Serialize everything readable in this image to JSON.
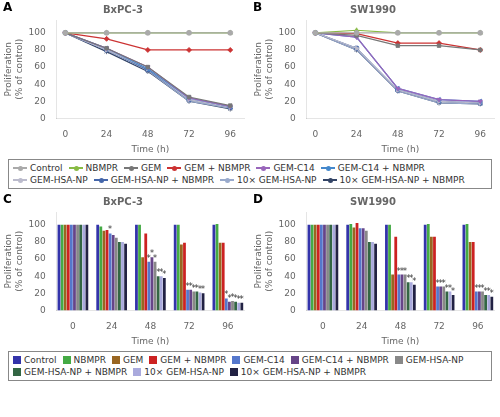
{
  "chart_data": [
    {
      "type": "line",
      "title": "BxPC-3",
      "xlabel": "Time (h)",
      "ylabel": "Proliferation\n(% of control)",
      "x": [
        0,
        24,
        48,
        72,
        96
      ],
      "xlim": [
        -5,
        104
      ],
      "xticks": [
        0,
        24,
        48,
        72,
        96
      ],
      "ylim": [
        0,
        115
      ],
      "yticks": [
        0,
        20,
        40,
        60,
        80,
        100
      ],
      "grid": false,
      "legend": "bottom",
      "annotations": [
        {
          "text": "A"
        }
      ],
      "series": [
        {
          "name": "Control",
          "color": "#aaaaaa",
          "marker": "circle",
          "values": [
            100,
            100,
            100,
            100,
            100
          ]
        },
        {
          "name": "NBMPR",
          "color": "#88bb44",
          "marker": "triangle_up",
          "values": [
            100,
            100,
            100,
            100,
            100
          ]
        },
        {
          "name": "GEM",
          "color": "#777777",
          "marker": "square",
          "values": [
            100,
            82,
            60,
            25,
            15
          ]
        },
        {
          "name": "GEM + NBMPR",
          "color": "#cc3333",
          "marker": "diamond",
          "values": [
            100,
            93,
            80,
            80,
            80
          ]
        },
        {
          "name": "GEM-C14",
          "color": "#9966bb",
          "marker": "triangle_down",
          "values": [
            100,
            82,
            60,
            24,
            14
          ]
        },
        {
          "name": "GEM-C14 + NBMPR",
          "color": "#4488cc",
          "marker": "triangle_left",
          "values": [
            100,
            82,
            58,
            24,
            14
          ]
        },
        {
          "name": "GEM-HSA-NP",
          "color": "#bbbbcc",
          "marker": "triangle_right",
          "values": [
            100,
            80,
            58,
            22,
            13
          ]
        },
        {
          "name": "GEM-HSA-NP + NBMPR",
          "color": "#4466aa",
          "marker": "pentagon",
          "values": [
            100,
            80,
            57,
            22,
            13
          ]
        },
        {
          "name": "10× GEM-HSA-NP",
          "color": "#99aacc",
          "marker": "hexagon",
          "values": [
            100,
            80,
            56,
            20,
            12
          ]
        },
        {
          "name": "10× GEM-HSA-NP + NBMPR",
          "color": "#334466",
          "marker": "star",
          "values": [
            100,
            78,
            55,
            20,
            11
          ]
        }
      ]
    },
    {
      "type": "line",
      "title": "SW1990",
      "xlabel": "Time (h)",
      "ylabel": "Proliferation\n(% of control)",
      "x": [
        0,
        24,
        48,
        72,
        96
      ],
      "xlim": [
        -5,
        104
      ],
      "xticks": [
        0,
        24,
        48,
        72,
        96
      ],
      "ylim": [
        0,
        115
      ],
      "yticks": [
        0,
        20,
        40,
        60,
        80,
        100
      ],
      "grid": false,
      "annotations": [
        {
          "text": "B"
        }
      ],
      "series": [
        {
          "name": "Control",
          "color": "#aaaaaa",
          "marker": "circle",
          "values": [
            100,
            100,
            100,
            100,
            100
          ]
        },
        {
          "name": "NBMPR",
          "color": "#88bb44",
          "marker": "triangle_up",
          "values": [
            100,
            103,
            100,
            100,
            100
          ]
        },
        {
          "name": "GEM",
          "color": "#777777",
          "marker": "square",
          "values": [
            100,
            97,
            85,
            85,
            80
          ]
        },
        {
          "name": "GEM + NBMPR",
          "color": "#cc3333",
          "marker": "diamond",
          "values": [
            100,
            99,
            88,
            88,
            80
          ]
        },
        {
          "name": "GEM-C14",
          "color": "#9966bb",
          "marker": "triangle_down",
          "values": [
            100,
            95,
            35,
            22,
            20
          ]
        },
        {
          "name": "GEM-C14 + NBMPR",
          "color": "#4488cc",
          "marker": "triangle_left",
          "values": [
            100,
            95,
            35,
            22,
            20
          ]
        },
        {
          "name": "GEM-HSA-NP",
          "color": "#bbbbcc",
          "marker": "triangle_right",
          "values": [
            100,
            82,
            33,
            20,
            18
          ]
        },
        {
          "name": "GEM-HSA-NP + NBMPR",
          "color": "#4466aa",
          "marker": "pentagon",
          "values": [
            100,
            82,
            33,
            20,
            18
          ]
        },
        {
          "name": "10× GEM-HSA-NP",
          "color": "#99aacc",
          "marker": "hexagon",
          "values": [
            100,
            80,
            32,
            18,
            17
          ]
        },
        {
          "name": "10× GEM-HSA-NP + NBMPR",
          "color": "#334466",
          "marker": "star",
          "values": [
            100,
            80,
            32,
            18,
            17
          ]
        }
      ]
    },
    {
      "type": "bar",
      "title": "BxPC-3",
      "xlabel": "Time (h)",
      "ylabel": "Proliferation\n(% of control)",
      "x": [
        0,
        24,
        48,
        72,
        96
      ],
      "xlim": [
        -10,
        106
      ],
      "xticks": [
        0,
        24,
        48,
        72,
        96
      ],
      "ylim": [
        0,
        115
      ],
      "yticks": [
        0,
        20,
        40,
        60,
        80,
        100
      ],
      "grid": false,
      "legend": "bottom",
      "annotations": [
        {
          "text": "C"
        },
        {
          "text": "*",
          "series": "GEM-C14",
          "x": 24,
          "y": 90
        },
        {
          "text": "*",
          "series": "GEM-C14",
          "x": 48,
          "y": 57
        },
        {
          "text": "*",
          "series": "GEM-C14",
          "x": 72,
          "y": 24
        },
        {
          "text": "*",
          "series": "GEM-C14",
          "x": 96,
          "y": 14
        },
        {
          "text": "*",
          "series": "GEM-C14 + NBMPR",
          "x": 48,
          "y": 62
        },
        {
          "text": "*",
          "series": "GEM-C14 + NBMPR",
          "x": 72,
          "y": 24
        },
        {
          "text": "*",
          "series": "GEM-C14 + NBMPR",
          "x": 96,
          "y": 10
        },
        {
          "text": "*",
          "series": "GEM-HSA-NP",
          "x": 48,
          "y": 57
        },
        {
          "text": "*",
          "series": "GEM-HSA-NP",
          "x": 72,
          "y": 22
        },
        {
          "text": "*",
          "series": "GEM-HSA-NP",
          "x": 96,
          "y": 11
        },
        {
          "text": "*",
          "series": "GEM-HSA-NP + NBMPR",
          "x": 48,
          "y": 40
        },
        {
          "text": "*",
          "series": "GEM-HSA-NP + NBMPR",
          "x": 72,
          "y": 22
        },
        {
          "text": "*",
          "series": "GEM-HSA-NP + NBMPR",
          "x": 96,
          "y": 10
        },
        {
          "text": "*",
          "series": "10× GEM-HSA-NP",
          "x": 48,
          "y": 40
        },
        {
          "text": "*",
          "series": "10× GEM-HSA-NP",
          "x": 72,
          "y": 21
        },
        {
          "text": "*",
          "series": "10× GEM-HSA-NP",
          "x": 96,
          "y": 9
        },
        {
          "text": "*",
          "series": "10× GEM-HSA-NP + NBMPR",
          "x": 48,
          "y": 38
        },
        {
          "text": "*",
          "series": "10× GEM-HSA-NP + NBMPR",
          "x": 72,
          "y": 20
        },
        {
          "text": "*",
          "series": "10× GEM-HSA-NP + NBMPR",
          "x": 96,
          "y": 9
        }
      ],
      "series": [
        {
          "name": "Control",
          "color": "#3333aa",
          "values": [
            100,
            100,
            100,
            100,
            100
          ]
        },
        {
          "name": "NBMPR",
          "color": "#44aa44",
          "values": [
            100,
            98,
            100,
            100,
            101
          ]
        },
        {
          "name": "GEM",
          "color": "#996622",
          "values": [
            100,
            93,
            62,
            77,
            79
          ]
        },
        {
          "name": "GEM + NBMPR",
          "color": "#cc2222",
          "values": [
            100,
            94,
            90,
            79,
            79
          ]
        },
        {
          "name": "GEM-C14",
          "color": "#5577cc",
          "values": [
            100,
            90,
            57,
            24,
            14
          ]
        },
        {
          "name": "GEM-C14 + NBMPR",
          "color": "#664488",
          "values": [
            100,
            88,
            62,
            24,
            10
          ]
        },
        {
          "name": "GEM-HSA-NP",
          "color": "#888888",
          "values": [
            100,
            85,
            57,
            22,
            11
          ]
        },
        {
          "name": "GEM-HSA-NP + NBMPR",
          "color": "#336644",
          "values": [
            100,
            80,
            40,
            22,
            10
          ]
        },
        {
          "name": "10× GEM-HSA-NP",
          "color": "#aaaadd",
          "values": [
            100,
            80,
            40,
            21,
            9
          ]
        },
        {
          "name": "10× GEM-HSA-NP + NBMPR",
          "color": "#222244",
          "values": [
            100,
            78,
            38,
            20,
            9
          ]
        }
      ]
    },
    {
      "type": "bar",
      "title": "SW1990",
      "xlabel": "Time (h)",
      "ylabel": "Proliferation\n(% of control)",
      "x": [
        0,
        24,
        48,
        72,
        96
      ],
      "xlim": [
        -10,
        106
      ],
      "xticks": [
        0,
        24,
        48,
        72,
        96
      ],
      "ylim": [
        0,
        115
      ],
      "yticks": [
        0,
        20,
        40,
        60,
        80,
        100
      ],
      "grid": false,
      "annotations": [
        {
          "text": "D"
        },
        {
          "text": "*",
          "series": "GEM-C14",
          "x": 48,
          "y": 42
        },
        {
          "text": "*",
          "series": "GEM-C14",
          "x": 72,
          "y": 28
        },
        {
          "text": "*",
          "series": "GEM-C14",
          "x": 96,
          "y": 22
        },
        {
          "text": "*",
          "series": "GEM-C14 + NBMPR",
          "x": 48,
          "y": 42
        },
        {
          "text": "*",
          "series": "GEM-C14 + NBMPR",
          "x": 72,
          "y": 28
        },
        {
          "text": "*",
          "series": "GEM-C14 + NBMPR",
          "x": 96,
          "y": 22
        },
        {
          "text": "*",
          "series": "GEM-HSA-NP",
          "x": 48,
          "y": 42
        },
        {
          "text": "*",
          "series": "GEM-HSA-NP",
          "x": 72,
          "y": 28
        },
        {
          "text": "*",
          "series": "GEM-HSA-NP",
          "x": 96,
          "y": 22
        },
        {
          "text": "*",
          "series": "GEM-HSA-NP + NBMPR",
          "x": 48,
          "y": 33
        },
        {
          "text": "*",
          "series": "GEM-HSA-NP + NBMPR",
          "x": 72,
          "y": 22
        },
        {
          "text": "*",
          "series": "GEM-HSA-NP + NBMPR",
          "x": 96,
          "y": 18
        },
        {
          "text": "*",
          "series": "10× GEM-HSA-NP",
          "x": 48,
          "y": 33
        },
        {
          "text": "*",
          "series": "10× GEM-HSA-NP",
          "x": 72,
          "y": 22
        },
        {
          "text": "*",
          "series": "10× GEM-HSA-NP",
          "x": 96,
          "y": 18
        },
        {
          "text": "*",
          "series": "10× GEM-HSA-NP + NBMPR",
          "x": 48,
          "y": 30
        },
        {
          "text": "*",
          "series": "10× GEM-HSA-NP + NBMPR",
          "x": 72,
          "y": 18
        },
        {
          "text": "*",
          "series": "10× GEM-HSA-NP + NBMPR",
          "x": 96,
          "y": 16
        }
      ],
      "series": [
        {
          "name": "Control",
          "color": "#3333aa",
          "values": [
            100,
            100,
            100,
            100,
            100
          ]
        },
        {
          "name": "NBMPR",
          "color": "#44aa44",
          "values": [
            100,
            101,
            100,
            101,
            101
          ]
        },
        {
          "name": "GEM",
          "color": "#996622",
          "values": [
            100,
            97,
            42,
            86,
            80
          ]
        },
        {
          "name": "GEM + NBMPR",
          "color": "#cc2222",
          "values": [
            100,
            102,
            86,
            86,
            80
          ]
        },
        {
          "name": "GEM-C14",
          "color": "#5577cc",
          "values": [
            100,
            96,
            42,
            28,
            22
          ]
        },
        {
          "name": "GEM-C14 + NBMPR",
          "color": "#664488",
          "values": [
            100,
            96,
            42,
            28,
            22
          ]
        },
        {
          "name": "GEM-HSA-NP",
          "color": "#888888",
          "values": [
            100,
            93,
            42,
            28,
            22
          ]
        },
        {
          "name": "GEM-HSA-NP + NBMPR",
          "color": "#336644",
          "values": [
            100,
            80,
            33,
            22,
            18
          ]
        },
        {
          "name": "10× GEM-HSA-NP",
          "color": "#aaaadd",
          "values": [
            100,
            80,
            33,
            22,
            18
          ]
        },
        {
          "name": "10× GEM-HSA-NP + NBMPR",
          "color": "#222244",
          "values": [
            100,
            78,
            30,
            18,
            16
          ]
        }
      ]
    }
  ]
}
